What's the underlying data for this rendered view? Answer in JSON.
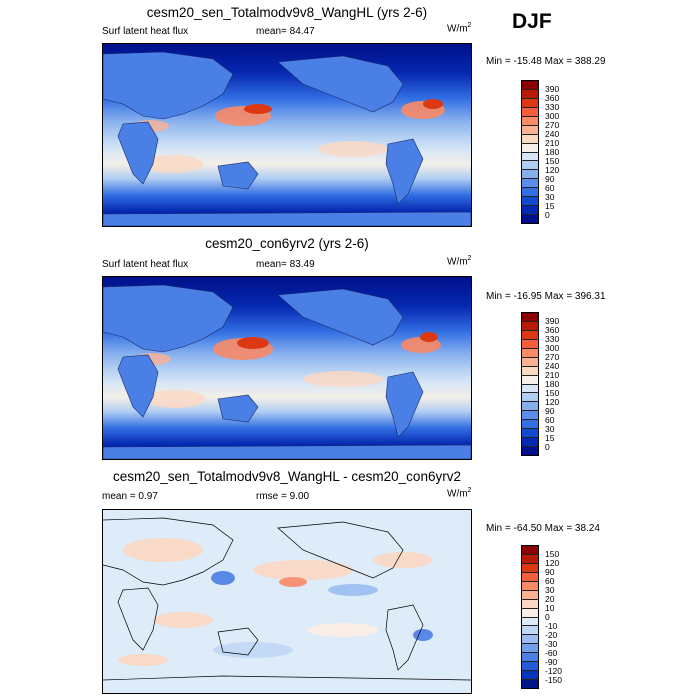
{
  "season": "DJF",
  "panels": [
    {
      "title": "cesm20_sen_Totalmodv9v8_WangHL (yrs 2-6)",
      "left_label": "Surf latent heat flux",
      "mid_label": "mean=  84.47",
      "units_base": "W/m",
      "units_exp": "2",
      "minmax": "Min = -15.48 Max = 388.29"
    },
    {
      "title": "cesm20_con6yrv2 (yrs 2-6)",
      "left_label": "Surf latent heat flux",
      "mid_label": "mean=  83.49",
      "units_base": "W/m",
      "units_exp": "2",
      "minmax": "Min = -16.95 Max = 396.31"
    },
    {
      "title": "cesm20_sen_Totalmodv9v8_WangHL - cesm20_con6yrv2",
      "left_label": "mean =   0.97",
      "mid_label": "rmse =   9.00",
      "units_base": "W/m",
      "units_exp": "2",
      "minmax": "Min = -64.50 Max =  38.24"
    }
  ],
  "colorbar_abs": {
    "labels": [
      "390",
      "360",
      "330",
      "300",
      "270",
      "240",
      "210",
      "180",
      "150",
      "120",
      "90",
      "60",
      "30",
      "15",
      "0"
    ],
    "colors": [
      "#8b0000",
      "#b81a05",
      "#dc3912",
      "#f0603c",
      "#f98a66",
      "#fbb293",
      "#fcd8c2",
      "#f4efe8",
      "#d6e6f7",
      "#b0cdf2",
      "#86afee",
      "#5b8eea",
      "#326fe3",
      "#1249cf",
      "#0528b0",
      "#00108a"
    ]
  },
  "colorbar_diff": {
    "labels": [
      "150",
      "120",
      "90",
      "60",
      "30",
      "20",
      "10",
      "0",
      "-10",
      "-20",
      "-30",
      "-60",
      "-90",
      "-120",
      "-150"
    ],
    "colors": [
      "#8b0000",
      "#b81a05",
      "#dc3912",
      "#f0603c",
      "#f98a66",
      "#fbb293",
      "#fcd8c2",
      "#fdeee3",
      "#deebf8",
      "#c1d8f5",
      "#9abdf1",
      "#729fec",
      "#4a7fe6",
      "#235bd8",
      "#0a35b8",
      "#001488"
    ]
  }
}
